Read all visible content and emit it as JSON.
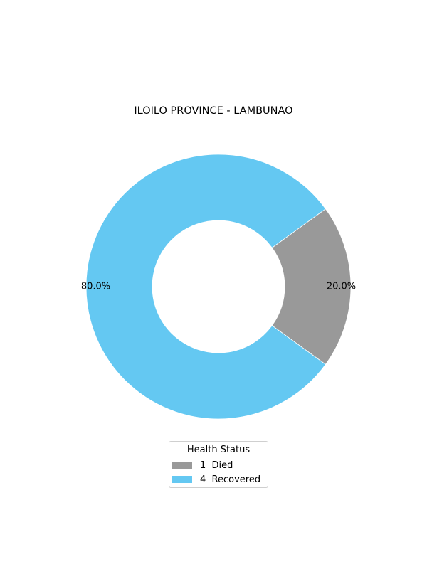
{
  "chart_data": {
    "type": "pie",
    "title": "ILOILO PROVINCE - LAMBUNAO",
    "slices": [
      {
        "label": "Died",
        "value": 1,
        "percent_label": "20.0%",
        "color": "#999999"
      },
      {
        "label": "Recovered",
        "value": 4,
        "percent_label": "80.0%",
        "color": "#64c8f2"
      }
    ],
    "donut": true,
    "legend": {
      "title": "Health Status",
      "placement": "bottom-center",
      "entries": [
        {
          "label": "1  Died",
          "color": "#999999"
        },
        {
          "label": "4  Recovered",
          "color": "#64c8f2"
        }
      ]
    }
  }
}
